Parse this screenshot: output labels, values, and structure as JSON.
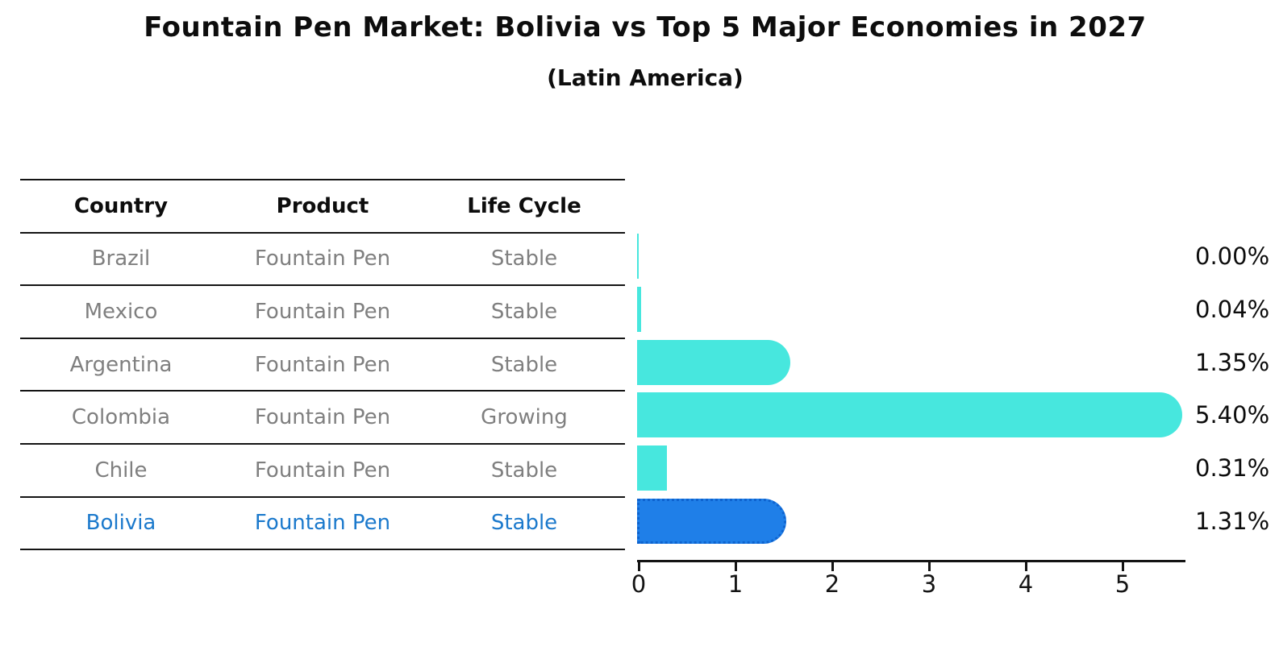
{
  "header": {
    "title": "Fountain Pen Market: Bolivia vs Top 5 Major Economies in 2027",
    "subtitle": "(Latin America)"
  },
  "table": {
    "headers": [
      "Country",
      "Product",
      "Life Cycle"
    ],
    "rows": [
      {
        "country": "Brazil",
        "product": "Fountain Pen",
        "life_cycle": "Stable",
        "highlight": false
      },
      {
        "country": "Mexico",
        "product": "Fountain Pen",
        "life_cycle": "Stable",
        "highlight": false
      },
      {
        "country": "Argentina",
        "product": "Fountain Pen",
        "life_cycle": "Stable",
        "highlight": false
      },
      {
        "country": "Colombia",
        "product": "Fountain Pen",
        "life_cycle": "Growing",
        "highlight": false
      },
      {
        "country": "Chile",
        "product": "Fountain Pen",
        "life_cycle": "Stable",
        "highlight": false
      },
      {
        "country": "Bolivia",
        "product": "Fountain Pen",
        "life_cycle": "Stable",
        "highlight": true
      }
    ]
  },
  "chart_data": {
    "type": "bar",
    "orientation": "horizontal",
    "title": "Fountain Pen Market: Bolivia vs Top 5 Major Economies in 2027",
    "subtitle": "(Latin America)",
    "categories": [
      "Brazil",
      "Mexico",
      "Argentina",
      "Colombia",
      "Chile",
      "Bolivia"
    ],
    "values": [
      0.0,
      0.04,
      1.35,
      5.4,
      0.31,
      1.31
    ],
    "value_labels": [
      "0.00%",
      "0.04%",
      "1.35%",
      "5.40%",
      "0.31%",
      "1.31%"
    ],
    "xticks": [
      "0",
      "1",
      "2",
      "3",
      "4",
      "5"
    ],
    "xlim": [
      0,
      5.66
    ],
    "grid": false,
    "legend": "none",
    "highlight_category": "Bolivia",
    "colors": {
      "bar": "#47e7de",
      "highlight_bar": "#1f7fe8",
      "highlight_border": "#0e63cf",
      "highlight_text": "#1b79cc",
      "table_text": "#7f7f7f",
      "axis": "#141414",
      "label_text": "#0d0d0d"
    }
  }
}
